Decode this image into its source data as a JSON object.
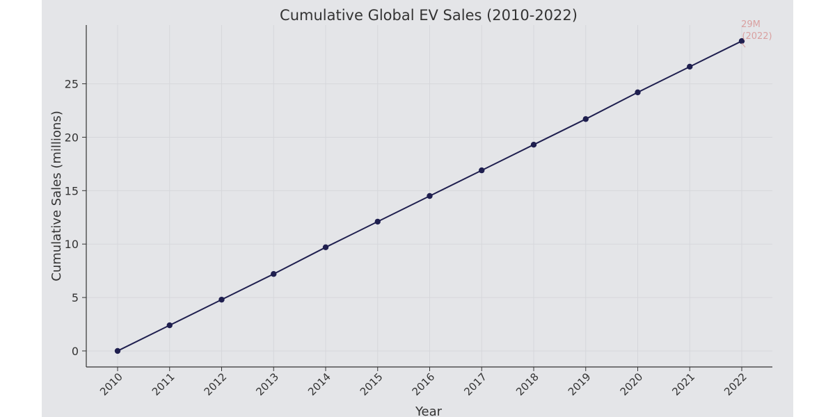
{
  "chart_data": {
    "type": "line",
    "title": "Cumulative Global EV Sales (2010-2022)",
    "xlabel": "Year",
    "ylabel": "Cumulative Sales (millions)",
    "x": [
      "2010",
      "2011",
      "2012",
      "2013",
      "2014",
      "2015",
      "2016",
      "2017",
      "2018",
      "2019",
      "2020",
      "2021",
      "2022"
    ],
    "series": [
      {
        "values": [
          0,
          2.4,
          4.8,
          7.2,
          9.7,
          12.1,
          14.5,
          16.9,
          19.3,
          21.7,
          24.2,
          26.6,
          29
        ],
        "color": "#1f1f4f"
      }
    ],
    "ylim": [
      -1.5,
      30.5
    ],
    "yticks": [
      0,
      5,
      10,
      15,
      20,
      25
    ],
    "grid": true,
    "annotation": {
      "text_line1": "29M",
      "text_line2": "(2022)",
      "color": "#d9a0a0"
    }
  }
}
